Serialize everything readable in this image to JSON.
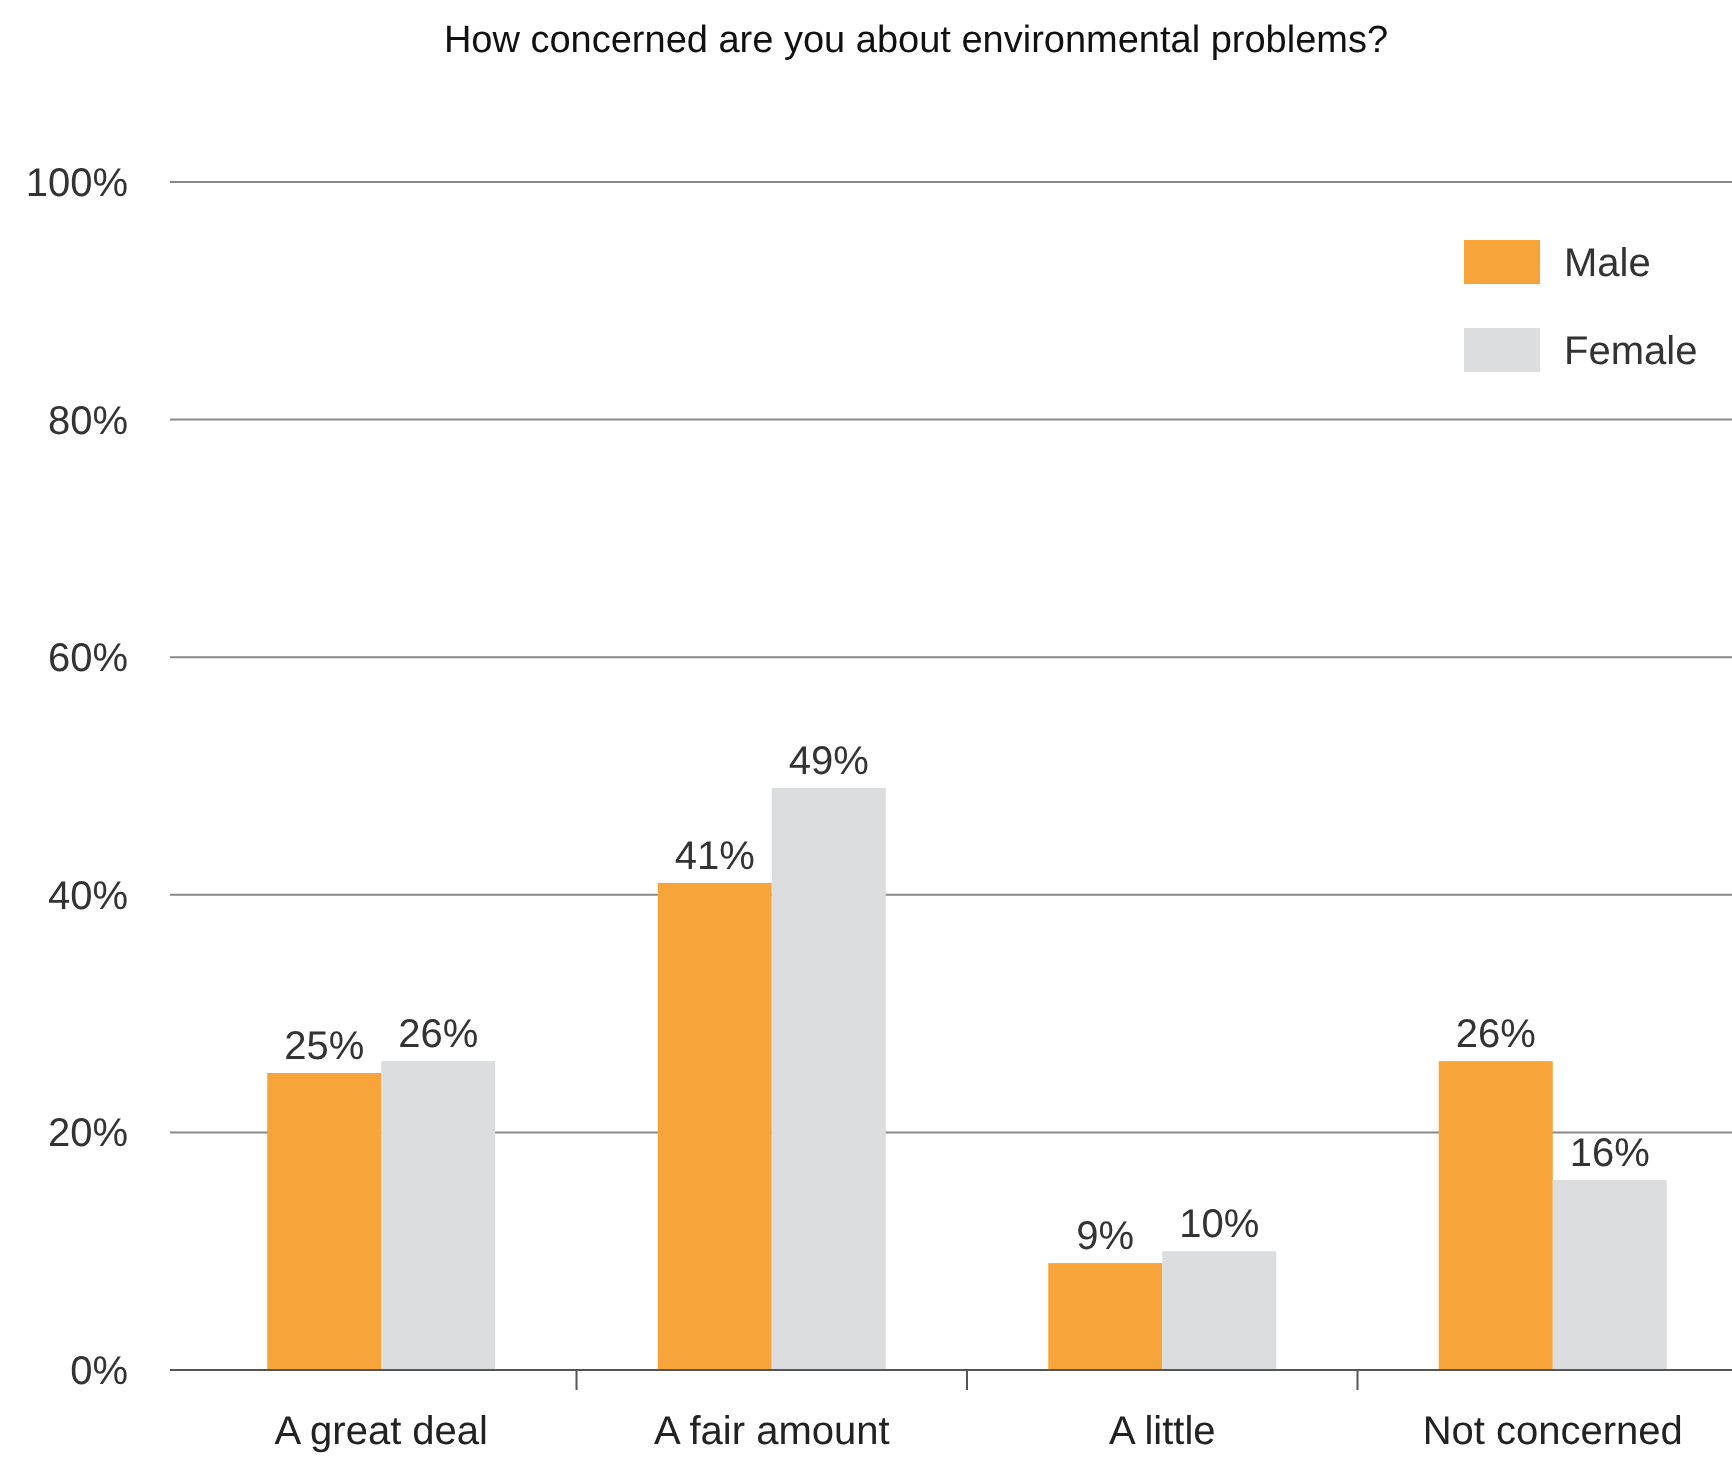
{
  "chart_data": {
    "type": "bar",
    "title": "How concerned are you about environmental problems?",
    "categories": [
      "A great deal",
      "A fair amount",
      "A little",
      "Not concerned"
    ],
    "series": [
      {
        "name": "Male",
        "color": "#f7a43a",
        "values": [
          25,
          41,
          9,
          26
        ],
        "value_labels": [
          "25%",
          "41%",
          "9%",
          "26%"
        ]
      },
      {
        "name": "Female",
        "color": "#dcdddf",
        "values": [
          26,
          49,
          10,
          16
        ],
        "value_labels": [
          "26%",
          "49%",
          "10%",
          "16%"
        ]
      }
    ],
    "ylim": [
      0,
      100
    ],
    "yticks": [
      {
        "value": 0,
        "label": "0%"
      },
      {
        "value": 20,
        "label": "20%"
      },
      {
        "value": 40,
        "label": "40%"
      },
      {
        "value": 60,
        "label": "60%"
      },
      {
        "value": 80,
        "label": "80%"
      },
      {
        "value": 100,
        "label": "100%"
      }
    ],
    "grid": "y",
    "legend": "top right"
  }
}
